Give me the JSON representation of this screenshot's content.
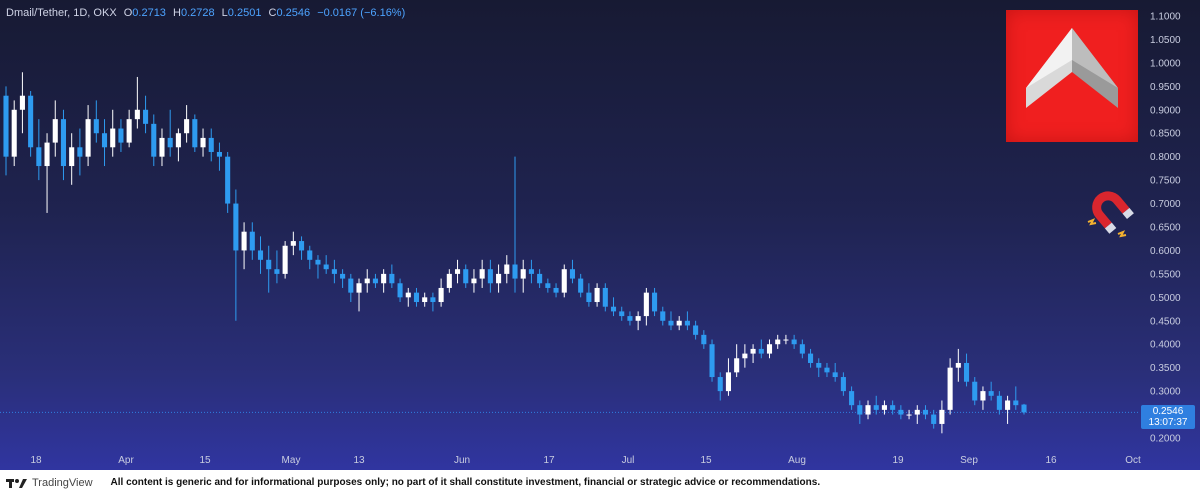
{
  "header": {
    "symbol": "Dmail/Tether, 1D, OKX",
    "o_label": "O",
    "o_value": "0.2713",
    "h_label": "H",
    "h_value": "0.2728",
    "l_label": "L",
    "l_value": "0.2501",
    "c_label": "C",
    "c_value": "0.2546",
    "change": "−0.0167 (−6.16%)"
  },
  "price_badge": {
    "price": "0.2546",
    "countdown": "13:07:37"
  },
  "footer": {
    "brand": "TradingView",
    "disclaimer": "All content is generic and for informational purposes only; no part of it shall constitute investment, financial or strategic advice or recommendations."
  },
  "colors": {
    "up": "#ffffff",
    "down": "#2e9bf0",
    "background_top": "#171a33",
    "background_bottom": "#3035a0",
    "logo_red": "#f01f1f"
  },
  "icons": {
    "logo": "dmail-logo-icon",
    "magnet": "magnet-icon"
  },
  "chart_data": {
    "type": "candlestick",
    "y_ticks": [
      "1.1000",
      "1.0500",
      "1.0000",
      "0.9500",
      "0.9000",
      "0.8500",
      "0.8000",
      "0.7500",
      "0.7000",
      "0.6500",
      "0.6000",
      "0.5500",
      "0.5000",
      "0.4500",
      "0.4000",
      "0.3500",
      "0.3000",
      "0.2500",
      "0.2000"
    ],
    "ylim": [
      0.185,
      1.11
    ],
    "x_labels": [
      "18",
      "Apr",
      "15",
      "May",
      "13",
      "Jun",
      "17",
      "Jul",
      "15",
      "Aug",
      "19",
      "Sep",
      "16",
      "Oct"
    ],
    "last_price": 0.2546,
    "grid": false,
    "candles": [
      [
        0.93,
        0.95,
        0.76,
        0.8
      ],
      [
        0.8,
        0.92,
        0.78,
        0.9
      ],
      [
        0.9,
        0.98,
        0.85,
        0.93
      ],
      [
        0.93,
        0.94,
        0.8,
        0.82
      ],
      [
        0.82,
        0.88,
        0.75,
        0.78
      ],
      [
        0.78,
        0.85,
        0.68,
        0.83
      ],
      [
        0.83,
        0.92,
        0.8,
        0.88
      ],
      [
        0.88,
        0.9,
        0.75,
        0.78
      ],
      [
        0.78,
        0.85,
        0.74,
        0.82
      ],
      [
        0.82,
        0.86,
        0.76,
        0.8
      ],
      [
        0.8,
        0.91,
        0.78,
        0.88
      ],
      [
        0.88,
        0.92,
        0.83,
        0.85
      ],
      [
        0.85,
        0.88,
        0.78,
        0.82
      ],
      [
        0.82,
        0.9,
        0.8,
        0.86
      ],
      [
        0.86,
        0.88,
        0.81,
        0.83
      ],
      [
        0.83,
        0.9,
        0.82,
        0.88
      ],
      [
        0.88,
        0.97,
        0.86,
        0.9
      ],
      [
        0.9,
        0.93,
        0.85,
        0.87
      ],
      [
        0.87,
        0.89,
        0.78,
        0.8
      ],
      [
        0.8,
        0.86,
        0.78,
        0.84
      ],
      [
        0.84,
        0.9,
        0.8,
        0.82
      ],
      [
        0.82,
        0.86,
        0.79,
        0.85
      ],
      [
        0.85,
        0.91,
        0.83,
        0.88
      ],
      [
        0.88,
        0.89,
        0.81,
        0.82
      ],
      [
        0.82,
        0.86,
        0.8,
        0.84
      ],
      [
        0.84,
        0.86,
        0.79,
        0.81
      ],
      [
        0.81,
        0.83,
        0.77,
        0.8
      ],
      [
        0.8,
        0.81,
        0.68,
        0.7
      ],
      [
        0.7,
        0.73,
        0.45,
        0.6
      ],
      [
        0.6,
        0.66,
        0.56,
        0.64
      ],
      [
        0.64,
        0.66,
        0.58,
        0.6
      ],
      [
        0.6,
        0.63,
        0.55,
        0.58
      ],
      [
        0.58,
        0.61,
        0.51,
        0.56
      ],
      [
        0.56,
        0.6,
        0.53,
        0.55
      ],
      [
        0.55,
        0.62,
        0.54,
        0.61
      ],
      [
        0.61,
        0.64,
        0.59,
        0.62
      ],
      [
        0.62,
        0.63,
        0.58,
        0.6
      ],
      [
        0.6,
        0.61,
        0.56,
        0.58
      ],
      [
        0.58,
        0.59,
        0.54,
        0.57
      ],
      [
        0.57,
        0.59,
        0.55,
        0.56
      ],
      [
        0.56,
        0.58,
        0.53,
        0.55
      ],
      [
        0.55,
        0.56,
        0.52,
        0.54
      ],
      [
        0.54,
        0.55,
        0.49,
        0.51
      ],
      [
        0.51,
        0.54,
        0.47,
        0.53
      ],
      [
        0.53,
        0.56,
        0.51,
        0.54
      ],
      [
        0.54,
        0.55,
        0.52,
        0.53
      ],
      [
        0.53,
        0.56,
        0.51,
        0.55
      ],
      [
        0.55,
        0.57,
        0.52,
        0.53
      ],
      [
        0.53,
        0.54,
        0.49,
        0.5
      ],
      [
        0.5,
        0.52,
        0.48,
        0.51
      ],
      [
        0.51,
        0.52,
        0.48,
        0.49
      ],
      [
        0.49,
        0.51,
        0.48,
        0.5
      ],
      [
        0.5,
        0.51,
        0.47,
        0.49
      ],
      [
        0.49,
        0.54,
        0.48,
        0.52
      ],
      [
        0.52,
        0.56,
        0.51,
        0.55
      ],
      [
        0.55,
        0.58,
        0.53,
        0.56
      ],
      [
        0.56,
        0.57,
        0.52,
        0.53
      ],
      [
        0.53,
        0.56,
        0.51,
        0.54
      ],
      [
        0.54,
        0.58,
        0.52,
        0.56
      ],
      [
        0.56,
        0.58,
        0.51,
        0.53
      ],
      [
        0.53,
        0.57,
        0.51,
        0.55
      ],
      [
        0.55,
        0.59,
        0.53,
        0.57
      ],
      [
        0.57,
        0.8,
        0.51,
        0.54
      ],
      [
        0.54,
        0.58,
        0.51,
        0.56
      ],
      [
        0.56,
        0.58,
        0.53,
        0.55
      ],
      [
        0.55,
        0.56,
        0.52,
        0.53
      ],
      [
        0.53,
        0.54,
        0.51,
        0.52
      ],
      [
        0.52,
        0.53,
        0.5,
        0.51
      ],
      [
        0.51,
        0.57,
        0.5,
        0.56
      ],
      [
        0.56,
        0.58,
        0.53,
        0.54
      ],
      [
        0.54,
        0.55,
        0.5,
        0.51
      ],
      [
        0.51,
        0.53,
        0.48,
        0.49
      ],
      [
        0.49,
        0.53,
        0.48,
        0.52
      ],
      [
        0.52,
        0.53,
        0.47,
        0.48
      ],
      [
        0.48,
        0.5,
        0.46,
        0.47
      ],
      [
        0.47,
        0.48,
        0.45,
        0.46
      ],
      [
        0.46,
        0.47,
        0.44,
        0.45
      ],
      [
        0.45,
        0.47,
        0.43,
        0.46
      ],
      [
        0.46,
        0.52,
        0.44,
        0.51
      ],
      [
        0.51,
        0.52,
        0.46,
        0.47
      ],
      [
        0.47,
        0.48,
        0.44,
        0.45
      ],
      [
        0.45,
        0.47,
        0.43,
        0.44
      ],
      [
        0.44,
        0.46,
        0.43,
        0.45
      ],
      [
        0.45,
        0.47,
        0.43,
        0.44
      ],
      [
        0.44,
        0.45,
        0.41,
        0.42
      ],
      [
        0.42,
        0.43,
        0.39,
        0.4
      ],
      [
        0.4,
        0.41,
        0.32,
        0.33
      ],
      [
        0.33,
        0.34,
        0.28,
        0.3
      ],
      [
        0.3,
        0.37,
        0.29,
        0.34
      ],
      [
        0.34,
        0.4,
        0.33,
        0.37
      ],
      [
        0.37,
        0.4,
        0.35,
        0.38
      ],
      [
        0.38,
        0.4,
        0.36,
        0.39
      ],
      [
        0.39,
        0.41,
        0.37,
        0.38
      ],
      [
        0.38,
        0.41,
        0.37,
        0.4
      ],
      [
        0.4,
        0.42,
        0.39,
        0.41
      ],
      [
        0.41,
        0.42,
        0.4,
        0.41
      ],
      [
        0.41,
        0.42,
        0.39,
        0.4
      ],
      [
        0.4,
        0.41,
        0.37,
        0.38
      ],
      [
        0.38,
        0.39,
        0.35,
        0.36
      ],
      [
        0.36,
        0.37,
        0.33,
        0.35
      ],
      [
        0.35,
        0.36,
        0.33,
        0.34
      ],
      [
        0.34,
        0.36,
        0.32,
        0.33
      ],
      [
        0.33,
        0.34,
        0.29,
        0.3
      ],
      [
        0.3,
        0.31,
        0.26,
        0.27
      ],
      [
        0.27,
        0.28,
        0.23,
        0.25
      ],
      [
        0.25,
        0.28,
        0.24,
        0.27
      ],
      [
        0.27,
        0.29,
        0.25,
        0.26
      ],
      [
        0.26,
        0.28,
        0.25,
        0.27
      ],
      [
        0.27,
        0.28,
        0.25,
        0.26
      ],
      [
        0.26,
        0.27,
        0.24,
        0.25
      ],
      [
        0.25,
        0.26,
        0.24,
        0.25
      ],
      [
        0.25,
        0.27,
        0.23,
        0.26
      ],
      [
        0.26,
        0.27,
        0.24,
        0.25
      ],
      [
        0.25,
        0.26,
        0.22,
        0.23
      ],
      [
        0.23,
        0.28,
        0.21,
        0.26
      ],
      [
        0.26,
        0.37,
        0.25,
        0.35
      ],
      [
        0.35,
        0.39,
        0.32,
        0.36
      ],
      [
        0.36,
        0.38,
        0.31,
        0.32
      ],
      [
        0.32,
        0.33,
        0.27,
        0.28
      ],
      [
        0.28,
        0.31,
        0.26,
        0.3
      ],
      [
        0.3,
        0.32,
        0.28,
        0.29
      ],
      [
        0.29,
        0.3,
        0.25,
        0.26
      ],
      [
        0.26,
        0.29,
        0.23,
        0.28
      ],
      [
        0.28,
        0.31,
        0.26,
        0.27
      ],
      [
        0.2713,
        0.2728,
        0.2501,
        0.2546
      ]
    ]
  }
}
